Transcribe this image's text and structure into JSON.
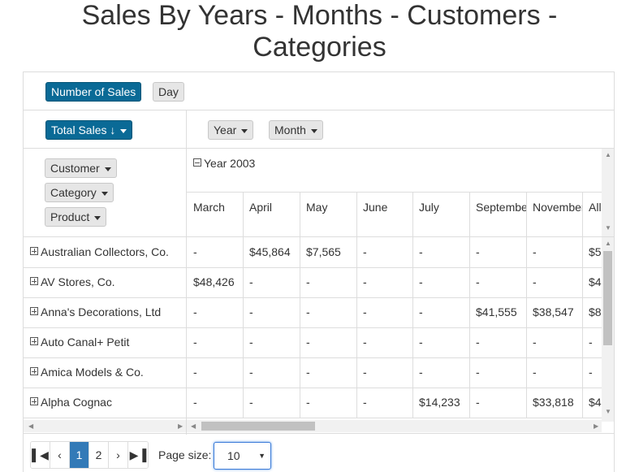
{
  "title": {
    "line1": "Sales By Years - Months - Customers -",
    "line2": "Categories"
  },
  "measures": {
    "number_of_sales": "Number of Sales",
    "day": "Day"
  },
  "sort_button": {
    "label": "Total Sales",
    "sort_icon": "down-arrow-icon"
  },
  "column_fields": [
    "Year",
    "Month"
  ],
  "row_fields": [
    "Customer",
    "Category",
    "Product"
  ],
  "year_group": "Year 2003",
  "months": [
    "March",
    "April",
    "May",
    "June",
    "July",
    "September",
    "November",
    "All"
  ],
  "rows": [
    {
      "customer": "Australian Collectors, Co.",
      "values": [
        "-",
        "$45,864",
        "$7,565",
        "-",
        "-",
        "-",
        "-",
        "$5"
      ]
    },
    {
      "customer": "AV Stores, Co.",
      "values": [
        "$48,426",
        "-",
        "-",
        "-",
        "-",
        "-",
        "-",
        "$4"
      ]
    },
    {
      "customer": "Anna's Decorations, Ltd",
      "values": [
        "-",
        "-",
        "-",
        "-",
        "-",
        "$41,555",
        "$38,547",
        "$8"
      ]
    },
    {
      "customer": "Auto Canal+ Petit",
      "values": [
        "-",
        "-",
        "-",
        "-",
        "-",
        "-",
        "-",
        "-"
      ]
    },
    {
      "customer": "Amica Models & Co.",
      "values": [
        "-",
        "-",
        "-",
        "-",
        "-",
        "-",
        "-",
        "-"
      ]
    },
    {
      "customer": "Alpha Cognac",
      "values": [
        "-",
        "-",
        "-",
        "-",
        "$14,233",
        "-",
        "$33,818",
        "$4"
      ]
    }
  ],
  "pager": {
    "first": "first-page-icon",
    "prev": "‹",
    "pages": [
      "1",
      "2"
    ],
    "next": "›",
    "last": "last-page-icon",
    "current_page": "1"
  },
  "page_size": {
    "label": "Page size:",
    "value": "10"
  },
  "colors": {
    "primary": "#0a6a96",
    "active_page": "#337ab7"
  }
}
